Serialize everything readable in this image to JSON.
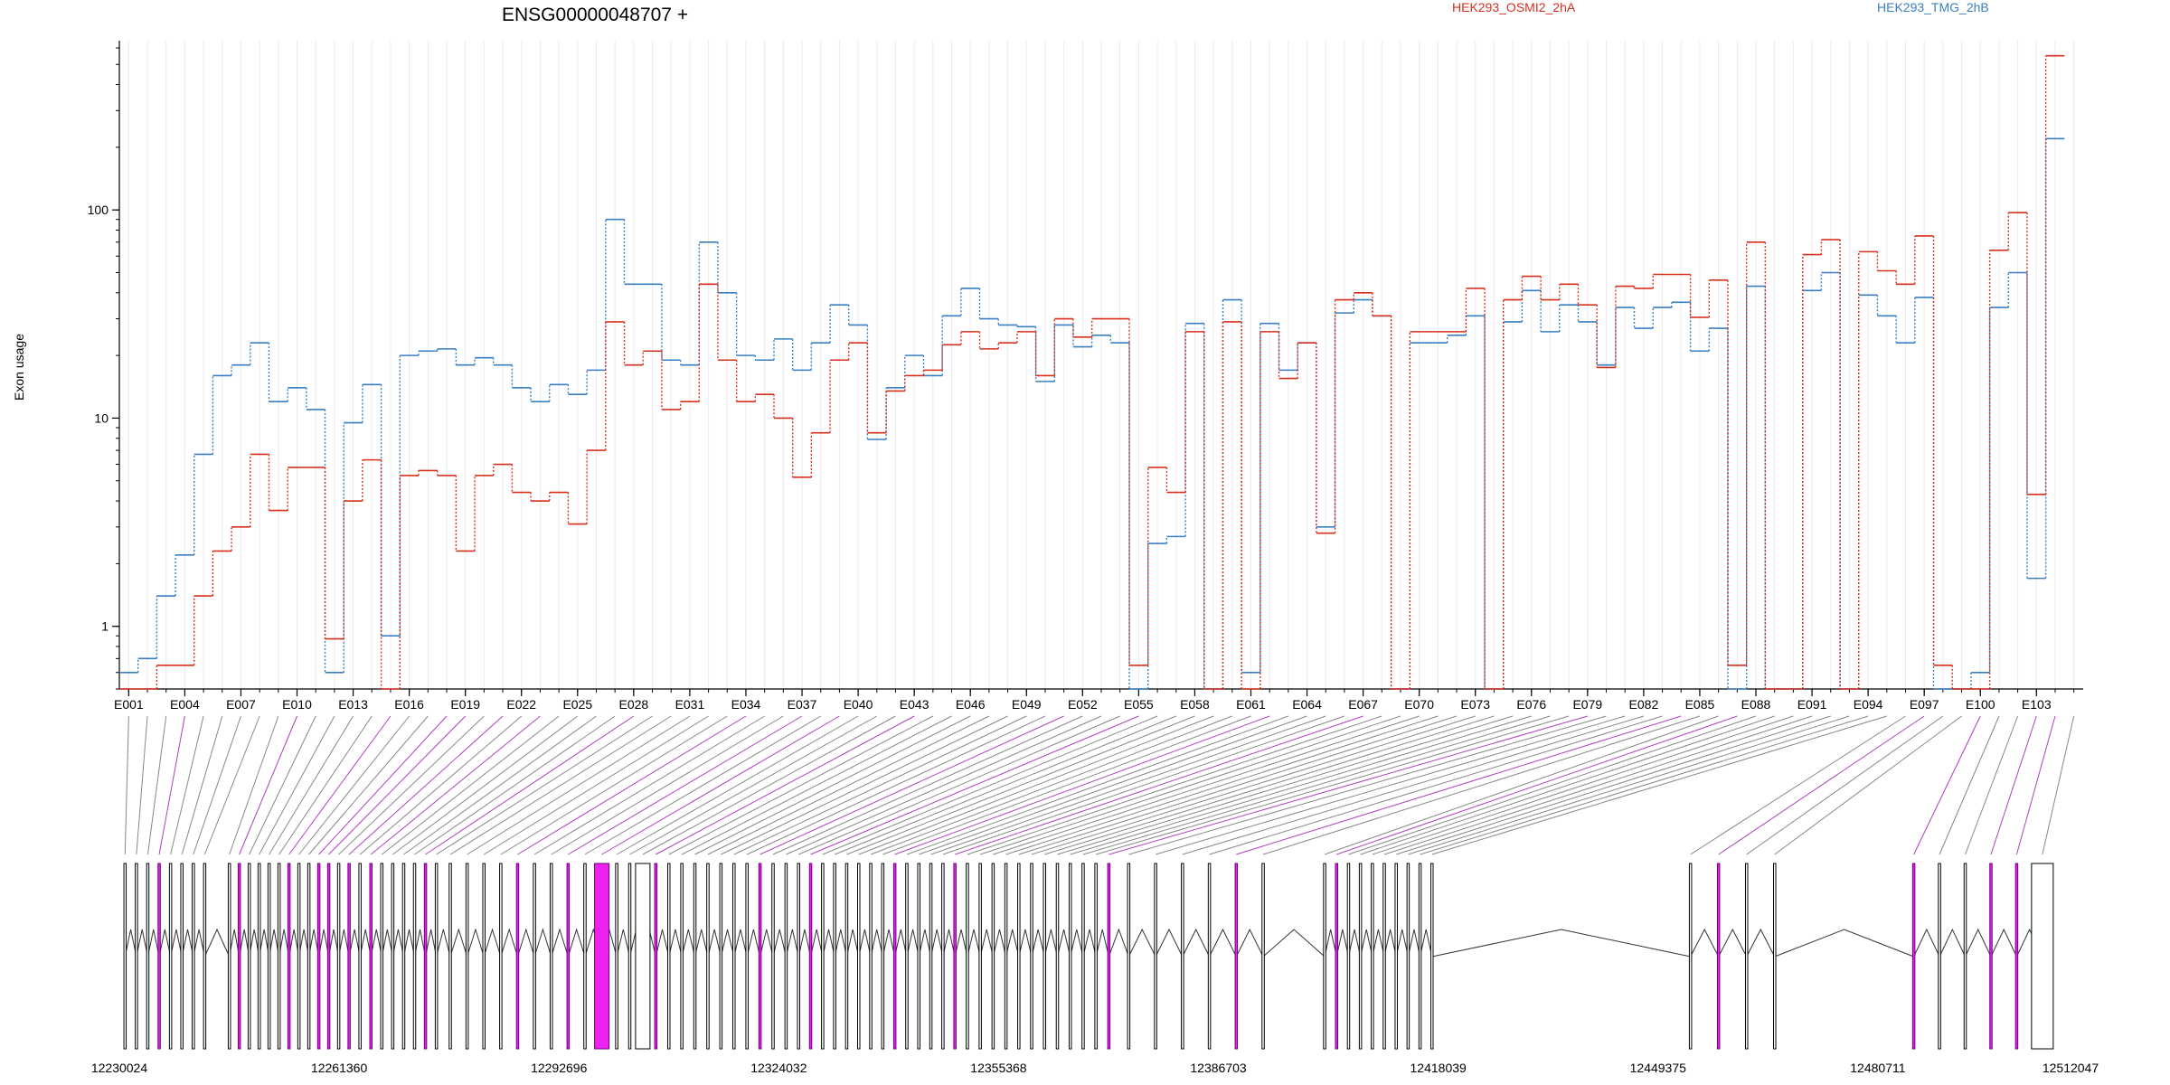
{
  "chart_data": {
    "type": "line",
    "title": "ENSG00000048707 +",
    "ylabel": "Exon usage",
    "y_scale": "log",
    "ylim": [
      0.5,
      650
    ],
    "y_ticks": [
      {
        "value": 1,
        "label": "1"
      },
      {
        "value": 10,
        "label": "10"
      },
      {
        "value": 100,
        "label": "100"
      }
    ],
    "grid": "vertical lines at each exon",
    "legend": [
      "HEK293_OSMI2_2hA",
      "HEK293_TMG_2hB"
    ],
    "legend_position": "top",
    "exon_count": 105,
    "exon_tick_labels": [
      "E001",
      "E004",
      "E007",
      "E010",
      "E013",
      "E016",
      "E019",
      "E022",
      "E025",
      "E028",
      "E031",
      "E034",
      "E037",
      "E040",
      "E043",
      "E046",
      "E049",
      "E052",
      "E055",
      "E058",
      "E061",
      "E064",
      "E067",
      "E070",
      "E073",
      "E076",
      "E079",
      "E082",
      "E085",
      "E088",
      "E091",
      "E094",
      "E097",
      "E100",
      "E103"
    ],
    "series": [
      {
        "name": "HEK293_TMG_2hB",
        "color": "#3a7fc1",
        "values": [
          0.6,
          0.7,
          1.4,
          2.2,
          6.7,
          16,
          18,
          23,
          12,
          14,
          11,
          0.6,
          9.5,
          14.5,
          0.9,
          20,
          21,
          21.5,
          18,
          19.5,
          18,
          14,
          12,
          14.5,
          13,
          17,
          90,
          44,
          44,
          19,
          18,
          70,
          40,
          20,
          19,
          24,
          17,
          23,
          35,
          28,
          7.9,
          14,
          20,
          16,
          31,
          42,
          30,
          28,
          27.5,
          15,
          28,
          22,
          25,
          23,
          0.5,
          2.5,
          2.7,
          28.5,
          0.5,
          37,
          0.6,
          28.5,
          17,
          23,
          3,
          32,
          37,
          31,
          0.5,
          23,
          23,
          25,
          31,
          0.5,
          29,
          41,
          26,
          35,
          29,
          18,
          34,
          27,
          34,
          36,
          21,
          27,
          0.5,
          43,
          0.5,
          0.5,
          41,
          50,
          0.5,
          39,
          31,
          23,
          38,
          0.5,
          0.5,
          0.6,
          34,
          50,
          1.7,
          220
        ]
      },
      {
        "name": "HEK293_OSMI2_2hA",
        "color": "#d7301f",
        "values": [
          0.5,
          0.5,
          0.65,
          0.65,
          1.4,
          2.3,
          3,
          6.7,
          3.6,
          5.8,
          5.8,
          0.87,
          4,
          6.3,
          0.5,
          5.3,
          5.6,
          5.3,
          2.3,
          5.3,
          6,
          4.4,
          4,
          4.4,
          3.1,
          7,
          29,
          18,
          21,
          11,
          12,
          44,
          19,
          12,
          13,
          10,
          5.2,
          8.5,
          19,
          23,
          8.5,
          13.5,
          16,
          17,
          22.5,
          26,
          21.5,
          23,
          26,
          16,
          30,
          24.5,
          30,
          30,
          0.65,
          5.8,
          4.4,
          26,
          0.5,
          29,
          0.5,
          26,
          15.5,
          23,
          2.8,
          37,
          40,
          31,
          0.5,
          26,
          26,
          26,
          42,
          0.5,
          37,
          48,
          37,
          44,
          35,
          17.5,
          43,
          42,
          49,
          49,
          30.5,
          46,
          0.65,
          70,
          0.5,
          0.5,
          61,
          72,
          0.5,
          63,
          51,
          44,
          75,
          0.65,
          0.5,
          0.5,
          64,
          97,
          4.3,
          550
        ]
      }
    ],
    "gene_model": {
      "coordinates": [
        "12230024",
        "12261360",
        "12292696",
        "12324032",
        "12355368",
        "12386703",
        "12418039",
        "12449375",
        "12480711",
        "12512047"
      ]
    }
  },
  "colors": {
    "tmg": "#3a7fc1",
    "osmi": "#d7301f",
    "exon_highlight": "#ee22ee",
    "connector_highlight": "#b040c0",
    "connector_plain": "#888888"
  }
}
